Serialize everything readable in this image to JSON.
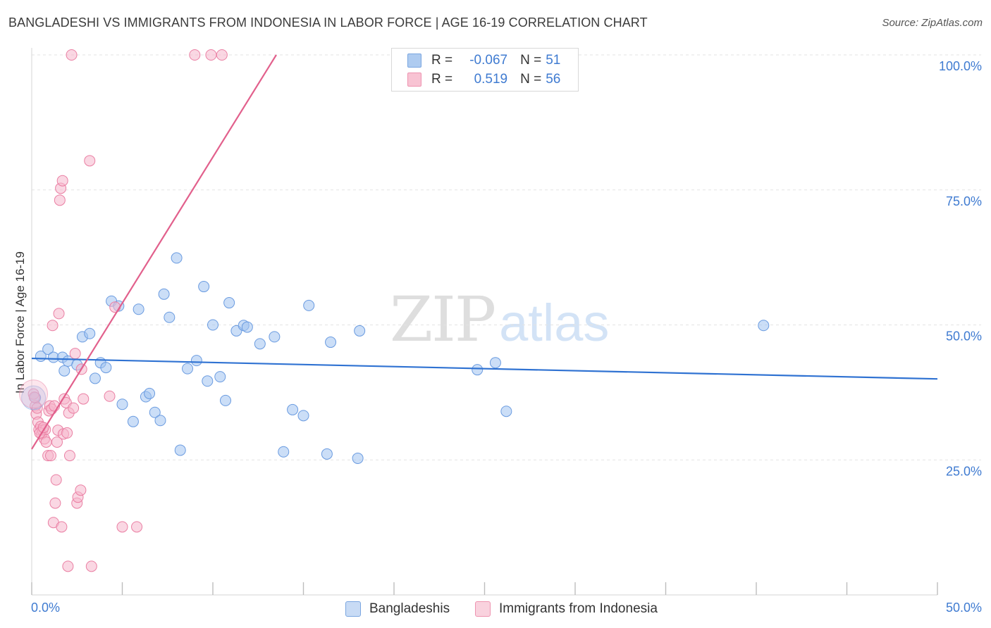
{
  "title": "BANGLADESHI VS IMMIGRANTS FROM INDONESIA IN LABOR FORCE | AGE 16-19 CORRELATION CHART",
  "source": "Source: ZipAtlas.com",
  "watermark": {
    "zip": "ZIP",
    "atlas": "atlas"
  },
  "legend": {
    "rows": [
      {
        "r_label": "R =",
        "r_value": "-0.067",
        "n_label": "N =",
        "n_value": "51",
        "fill": "#aecbf0",
        "stroke": "#7aa6e0"
      },
      {
        "r_label": "R =",
        "r_value": "0.519",
        "n_label": "N =",
        "n_value": "56",
        "fill": "#f8c3d3",
        "stroke": "#ee93b0"
      }
    ]
  },
  "bottom_legend": [
    {
      "label": "Bangladeshis",
      "fill": "#c8dbf5",
      "stroke": "#7aa6e0"
    },
    {
      "label": "Immigrants from Indonesia",
      "fill": "#f9d2de",
      "stroke": "#ee93b0"
    }
  ],
  "chart_data": {
    "type": "scatter",
    "title": "BANGLADESHI VS IMMIGRANTS FROM INDONESIA IN LABOR FORCE | AGE 16-19 CORRELATION CHART",
    "xlabel": "",
    "ylabel": "In Labor Force | Age 16-19",
    "xlim": [
      0,
      50
    ],
    "ylim": [
      0,
      100
    ],
    "x_tick_labels": [
      "0.0%",
      "50.0%"
    ],
    "y_ticks": [
      25,
      50,
      75,
      100
    ],
    "y_tick_labels": [
      "25.0%",
      "50.0%",
      "75.0%",
      "100.0%"
    ],
    "grid": true,
    "series": [
      {
        "name": "Bangladeshis",
        "color": "#6a9be0",
        "fill": "rgba(160,195,240,0.55)",
        "R": -0.067,
        "N": 51,
        "trend": {
          "x": [
            0,
            50
          ],
          "y": [
            43.8,
            40.0
          ],
          "color": "#2f72d2"
        },
        "points": [
          [
            0.2,
            36.5
          ],
          [
            0.5,
            44.2
          ],
          [
            0.9,
            45.5
          ],
          [
            1.2,
            44.0
          ],
          [
            1.7,
            44.0
          ],
          [
            1.8,
            41.5
          ],
          [
            2.0,
            43.3
          ],
          [
            2.5,
            42.6
          ],
          [
            2.8,
            47.8
          ],
          [
            3.2,
            48.4
          ],
          [
            3.5,
            40.1
          ],
          [
            3.8,
            43.0
          ],
          [
            4.1,
            42.1
          ],
          [
            4.4,
            54.4
          ],
          [
            4.8,
            53.5
          ],
          [
            5.0,
            35.3
          ],
          [
            5.6,
            32.1
          ],
          [
            5.9,
            52.9
          ],
          [
            6.3,
            36.7
          ],
          [
            6.5,
            37.3
          ],
          [
            6.8,
            33.8
          ],
          [
            7.1,
            32.3
          ],
          [
            7.3,
            55.7
          ],
          [
            7.6,
            51.4
          ],
          [
            8.0,
            62.4
          ],
          [
            8.2,
            26.8
          ],
          [
            8.6,
            41.9
          ],
          [
            9.1,
            43.4
          ],
          [
            9.5,
            57.1
          ],
          [
            9.7,
            39.6
          ],
          [
            10.0,
            50.0
          ],
          [
            10.4,
            40.4
          ],
          [
            10.7,
            36.0
          ],
          [
            10.9,
            54.1
          ],
          [
            11.3,
            48.9
          ],
          [
            11.7,
            49.9
          ],
          [
            11.9,
            49.6
          ],
          [
            12.6,
            46.5
          ],
          [
            13.4,
            47.8
          ],
          [
            14.4,
            34.3
          ],
          [
            13.9,
            26.5
          ],
          [
            15.0,
            33.2
          ],
          [
            15.3,
            53.6
          ],
          [
            16.3,
            26.1
          ],
          [
            16.5,
            46.8
          ],
          [
            18.1,
            48.9
          ],
          [
            18.0,
            25.3
          ],
          [
            24.6,
            41.7
          ],
          [
            25.6,
            43.0
          ],
          [
            26.2,
            34.0
          ],
          [
            40.4,
            49.9
          ]
        ]
      },
      {
        "name": "Immigrants from Indonesia",
        "color": "#ea7fa3",
        "fill": "rgba(246,182,204,0.55)",
        "R": 0.519,
        "N": 56,
        "trend": {
          "x": [
            0,
            13.5
          ],
          "y": [
            27.0,
            100.0
          ],
          "color": "#e2608c"
        },
        "points": [
          [
            0.1,
            37.2
          ],
          [
            0.2,
            35.0
          ],
          [
            0.25,
            33.5
          ],
          [
            0.3,
            34.6
          ],
          [
            0.35,
            32.0
          ],
          [
            0.4,
            30.6
          ],
          [
            0.5,
            31.2
          ],
          [
            0.55,
            29.8
          ],
          [
            0.6,
            30.5
          ],
          [
            0.7,
            28.9
          ],
          [
            0.75,
            30.6
          ],
          [
            0.8,
            28.3
          ],
          [
            0.9,
            25.8
          ],
          [
            0.95,
            34.1
          ],
          [
            1.0,
            35.0
          ],
          [
            1.05,
            25.8
          ],
          [
            1.1,
            34.4
          ],
          [
            1.15,
            49.9
          ],
          [
            1.2,
            13.4
          ],
          [
            1.3,
            17.0
          ],
          [
            1.35,
            21.3
          ],
          [
            1.4,
            28.3
          ],
          [
            1.45,
            30.5
          ],
          [
            1.5,
            52.1
          ],
          [
            1.55,
            73.1
          ],
          [
            1.6,
            75.3
          ],
          [
            1.65,
            12.6
          ],
          [
            1.7,
            76.7
          ],
          [
            1.75,
            29.8
          ],
          [
            1.8,
            36.3
          ],
          [
            1.9,
            35.6
          ],
          [
            1.95,
            30.0
          ],
          [
            2.0,
            5.3
          ],
          [
            2.05,
            33.7
          ],
          [
            2.1,
            25.8
          ],
          [
            2.2,
            100.0
          ],
          [
            2.3,
            34.6
          ],
          [
            2.4,
            44.7
          ],
          [
            2.5,
            17.0
          ],
          [
            2.55,
            18.1
          ],
          [
            2.7,
            19.4
          ],
          [
            2.75,
            41.8
          ],
          [
            2.85,
            36.3
          ],
          [
            3.2,
            80.4
          ],
          [
            3.3,
            5.3
          ],
          [
            4.3,
            36.8
          ],
          [
            4.6,
            53.3
          ],
          [
            5.0,
            12.6
          ],
          [
            5.8,
            12.6
          ],
          [
            9.0,
            100.0
          ],
          [
            9.9,
            100.0
          ],
          [
            10.5,
            100.0
          ],
          [
            0.15,
            36.6
          ],
          [
            0.45,
            30.0
          ],
          [
            0.65,
            31.0
          ],
          [
            1.25,
            35.0
          ]
        ]
      }
    ]
  }
}
